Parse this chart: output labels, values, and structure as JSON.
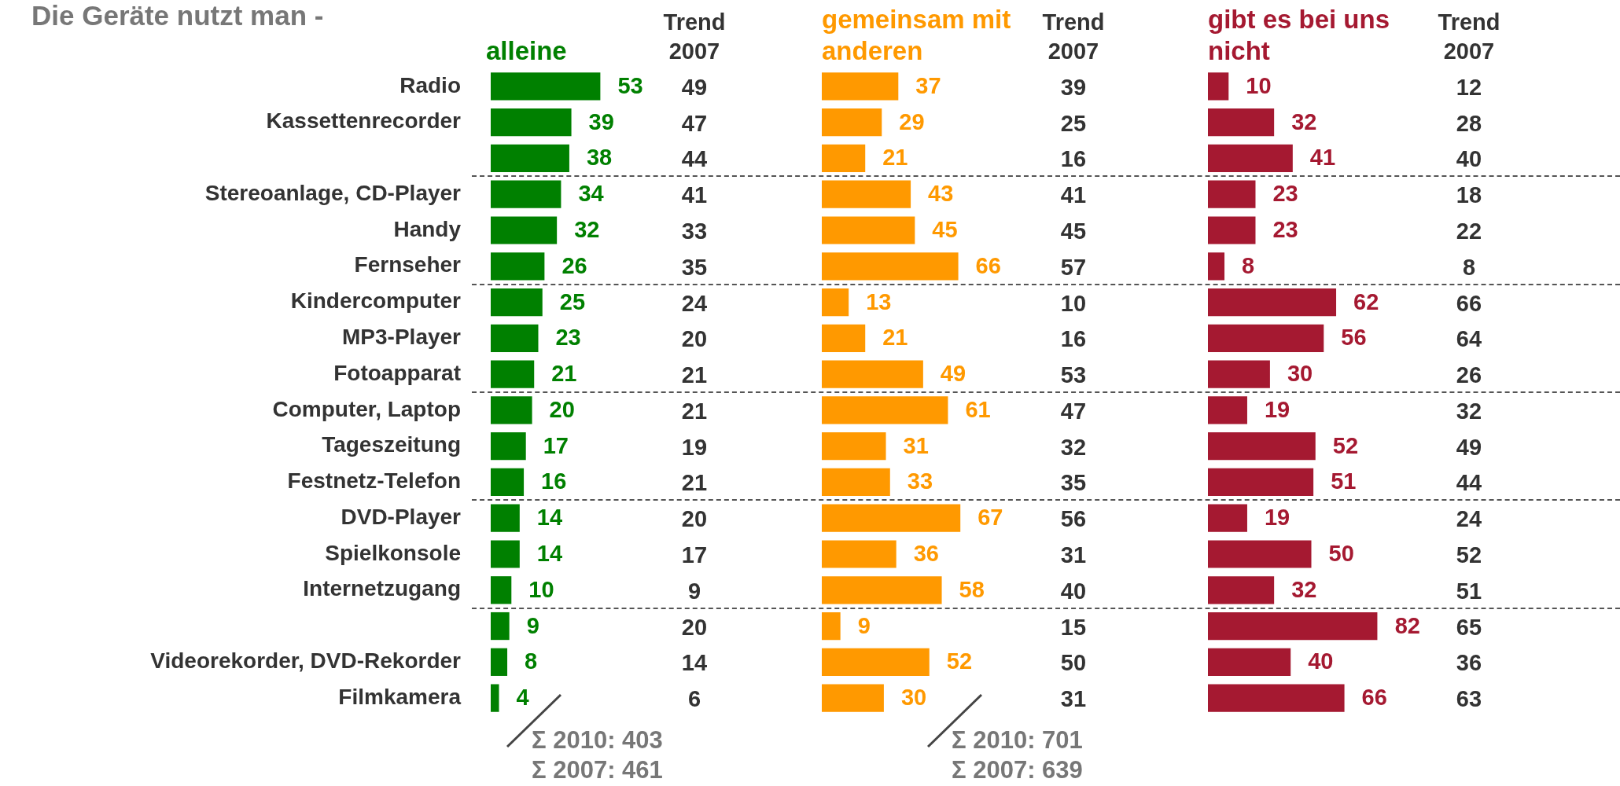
{
  "chart_data": [
    {
      "type": "bar",
      "orientation": "horizontal",
      "title": "Die Geräte nutzt man -",
      "categories": [
        "Radio",
        "Kassettenrecorder",
        null,
        "Stereoanlage, CD-Player",
        "Handy",
        "Fernseher",
        "Kindercomputer",
        "MP3-Player",
        "Fotoapparat",
        "Computer, Laptop",
        "Tageszeitung",
        "Festnetz-Telefon",
        "DVD-Player",
        "Spielkonsole",
        "Internetzugang",
        null,
        "Videorekorder, DVD-Rekorder",
        "Filmkamera"
      ],
      "series": [
        {
          "name": "alleine",
          "color": "#008000",
          "values": [
            53,
            39,
            38,
            34,
            32,
            26,
            25,
            23,
            21,
            20,
            17,
            16,
            14,
            14,
            10,
            9,
            8,
            4
          ]
        }
      ],
      "tick_labels": "y",
      "data_labels": true,
      "legend": "top",
      "annotations": [
        "Σ 2010: 403",
        "Σ 2007: 461"
      ]
    },
    {
      "type": "other",
      "title": "Trend 2007",
      "values": [
        49,
        47,
        44,
        41,
        33,
        35,
        24,
        20,
        21,
        21,
        19,
        21,
        20,
        17,
        9,
        20,
        14,
        6
      ],
      "data_labels": true
    },
    {
      "type": "bar",
      "orientation": "horizontal",
      "series": [
        {
          "name": "gemeinsam mit anderen",
          "color": "#ff9900",
          "values": [
            37,
            29,
            21,
            43,
            45,
            66,
            13,
            21,
            49,
            61,
            31,
            33,
            67,
            36,
            58,
            9,
            52,
            30
          ]
        }
      ],
      "tick_labels": false,
      "data_labels": true,
      "legend": "top",
      "annotations": [
        "Σ 2010: 701",
        "Σ 2007: 639"
      ]
    },
    {
      "type": "other",
      "title": "Trend 2007",
      "values": [
        39,
        25,
        16,
        41,
        45,
        57,
        10,
        16,
        53,
        47,
        32,
        35,
        56,
        31,
        40,
        15,
        50,
        31
      ],
      "data_labels": true
    },
    {
      "type": "bar",
      "orientation": "horizontal",
      "series": [
        {
          "name": "gibt es bei uns nicht",
          "color": "#a51931",
          "values": [
            10,
            32,
            41,
            23,
            23,
            8,
            62,
            56,
            30,
            19,
            52,
            51,
            19,
            50,
            32,
            82,
            40,
            66
          ]
        }
      ],
      "tick_labels": false,
      "data_labels": true,
      "legend": "top"
    },
    {
      "type": "other",
      "title": "Trend 2007",
      "values": [
        12,
        28,
        40,
        18,
        22,
        8,
        66,
        64,
        26,
        32,
        49,
        44,
        24,
        52,
        51,
        65,
        36,
        63
      ],
      "data_labels": true
    }
  ]
}
